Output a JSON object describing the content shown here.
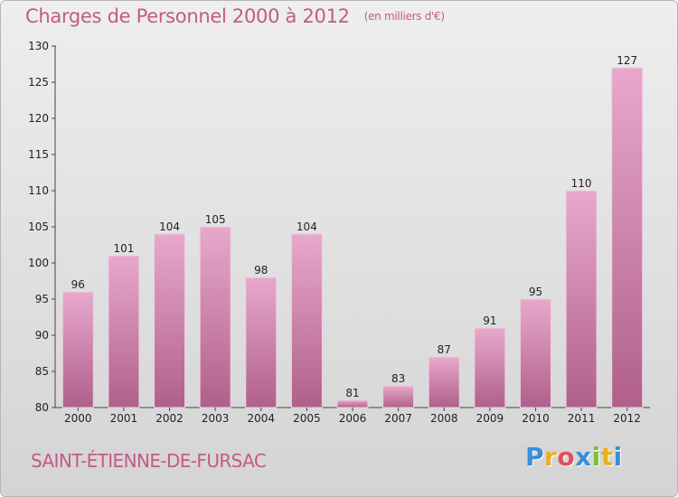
{
  "chart_title": "Charges de Personnel 2000 à 2012",
  "chart_subtitle": "(en milliers d'€)",
  "commune": "SAINT-ÉTIENNE-DE-FURSAC",
  "logo": {
    "letters": [
      "P",
      "r",
      "o",
      "x",
      "i",
      "t",
      "i"
    ],
    "colors": [
      "#3a8fd8",
      "#e8b020",
      "#e0505a",
      "#3a8fd8",
      "#7cbf3c",
      "#e8b020",
      "#3a8fd8"
    ]
  },
  "colors": {
    "bar_top": "#e8a8cc",
    "bar_bottom": "#b0608a",
    "bar_edge": "#ecd0e0",
    "accent": "#c45a88"
  },
  "chart_data": {
    "type": "bar",
    "title": "Charges de Personnel 2000 à 2012",
    "subtitle": "(en milliers d'€)",
    "categories": [
      "2000",
      "2001",
      "2002",
      "2003",
      "2004",
      "2005",
      "2006",
      "2007",
      "2008",
      "2009",
      "2010",
      "2011",
      "2012"
    ],
    "values": [
      96,
      101,
      104,
      105,
      98,
      104,
      81,
      83,
      87,
      91,
      95,
      110,
      127
    ],
    "ylim": [
      80,
      130
    ],
    "yticks": [
      "80",
      "85",
      "90",
      "95",
      "100",
      "105",
      "110",
      "115",
      "120",
      "125",
      "130"
    ],
    "grid": false,
    "data_labels": true
  }
}
